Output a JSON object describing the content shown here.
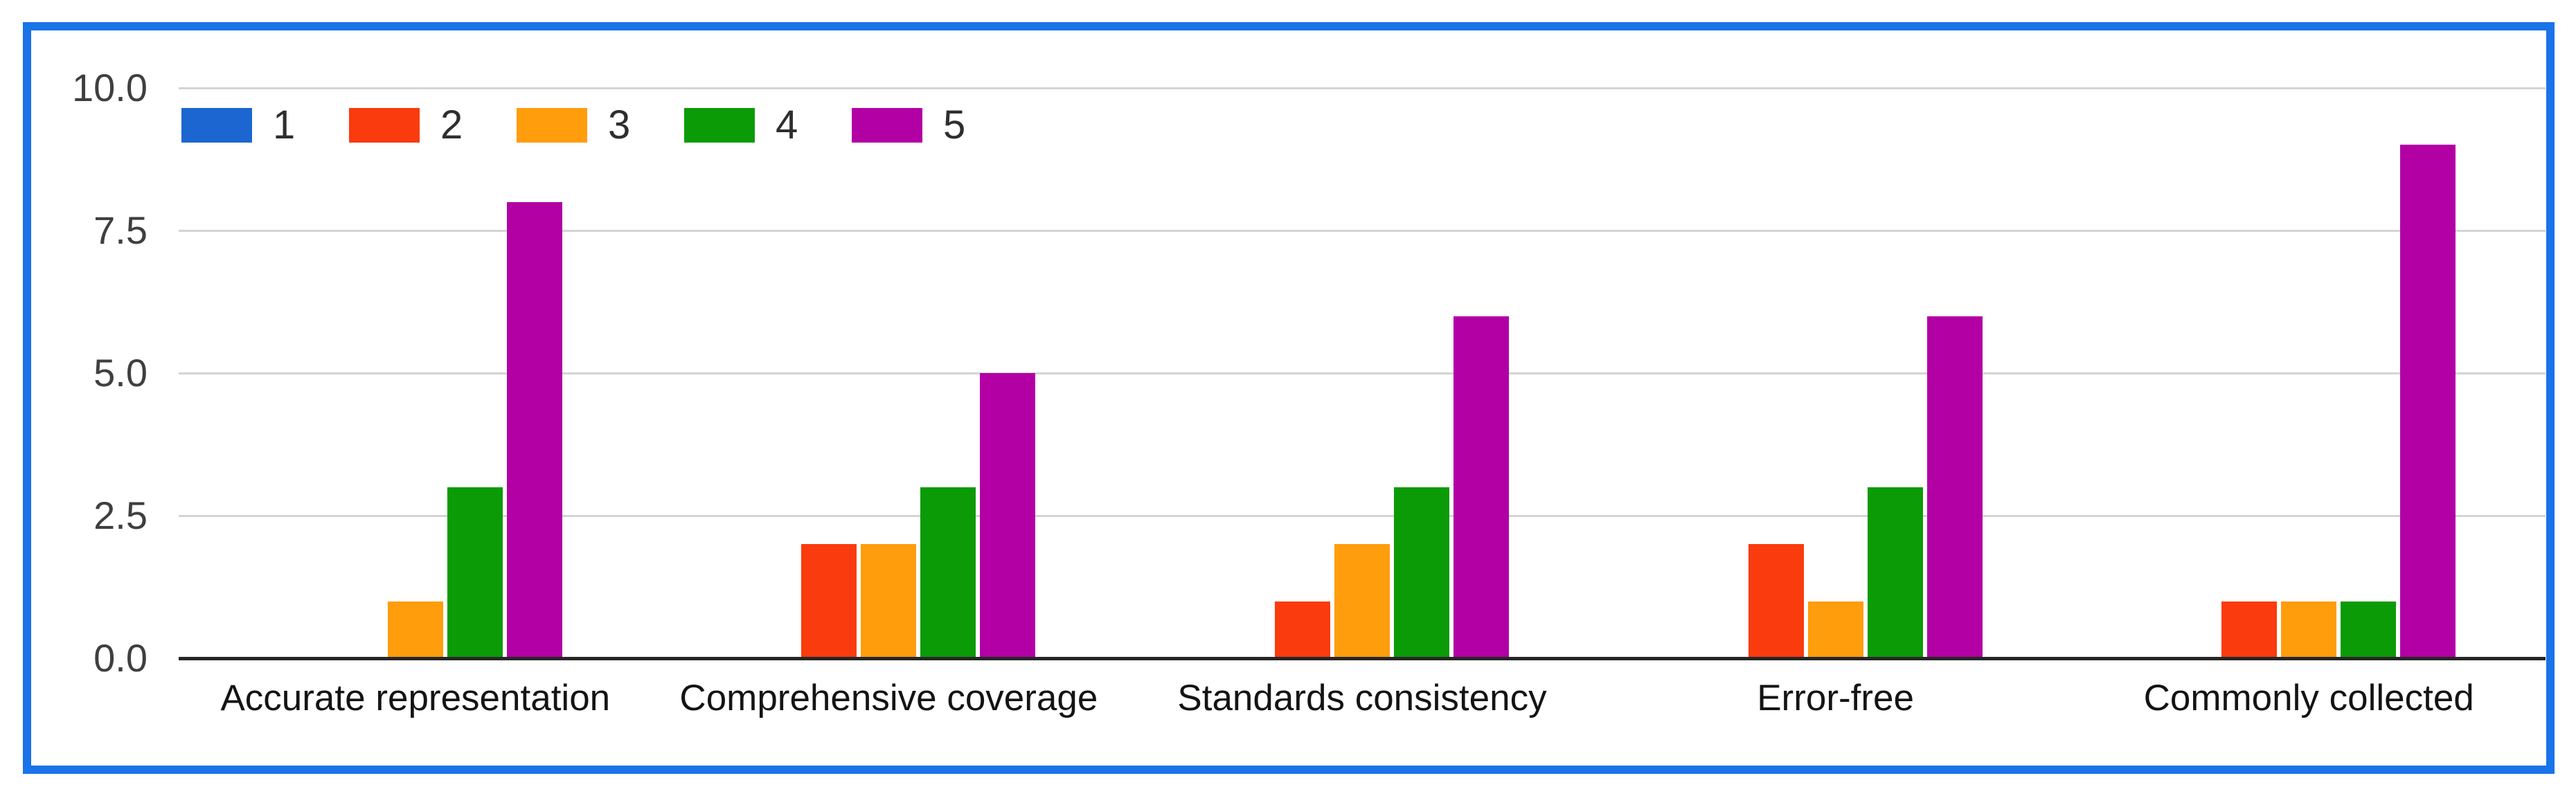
{
  "frame": {
    "border_color": "#1a73e8",
    "background": "#ffffff"
  },
  "chart_data": {
    "type": "bar",
    "title": "",
    "xlabel": "",
    "ylabel": "",
    "categories": [
      "Accurate representation",
      "Comprehensive coverage",
      "Standards consistency",
      "Error-free",
      "Commonly collected"
    ],
    "series": [
      {
        "name": "1",
        "color": "#1b66d1",
        "values": [
          0,
          0,
          0,
          0,
          0
        ]
      },
      {
        "name": "2",
        "color": "#fa3b0d",
        "values": [
          0,
          2,
          1,
          2,
          1
        ]
      },
      {
        "name": "3",
        "color": "#ff9d0c",
        "values": [
          1,
          2,
          2,
          1,
          1
        ]
      },
      {
        "name": "4",
        "color": "#0b9b07",
        "values": [
          3,
          3,
          3,
          3,
          1
        ]
      },
      {
        "name": "5",
        "color": "#b200a5",
        "values": [
          8,
          5,
          6,
          6,
          9
        ]
      }
    ],
    "ylim": [
      0,
      10
    ],
    "yticks": [
      {
        "label": "0.0",
        "value": 0
      },
      {
        "label": "2.5",
        "value": 2.5
      },
      {
        "label": "5.0",
        "value": 5
      },
      {
        "label": "7.5",
        "value": 7.5
      },
      {
        "label": "10.0",
        "value": 10
      }
    ],
    "grid": true,
    "gridline_color": "#d4d4d4",
    "axis_color": "#262626",
    "legend_position": "top-left"
  }
}
